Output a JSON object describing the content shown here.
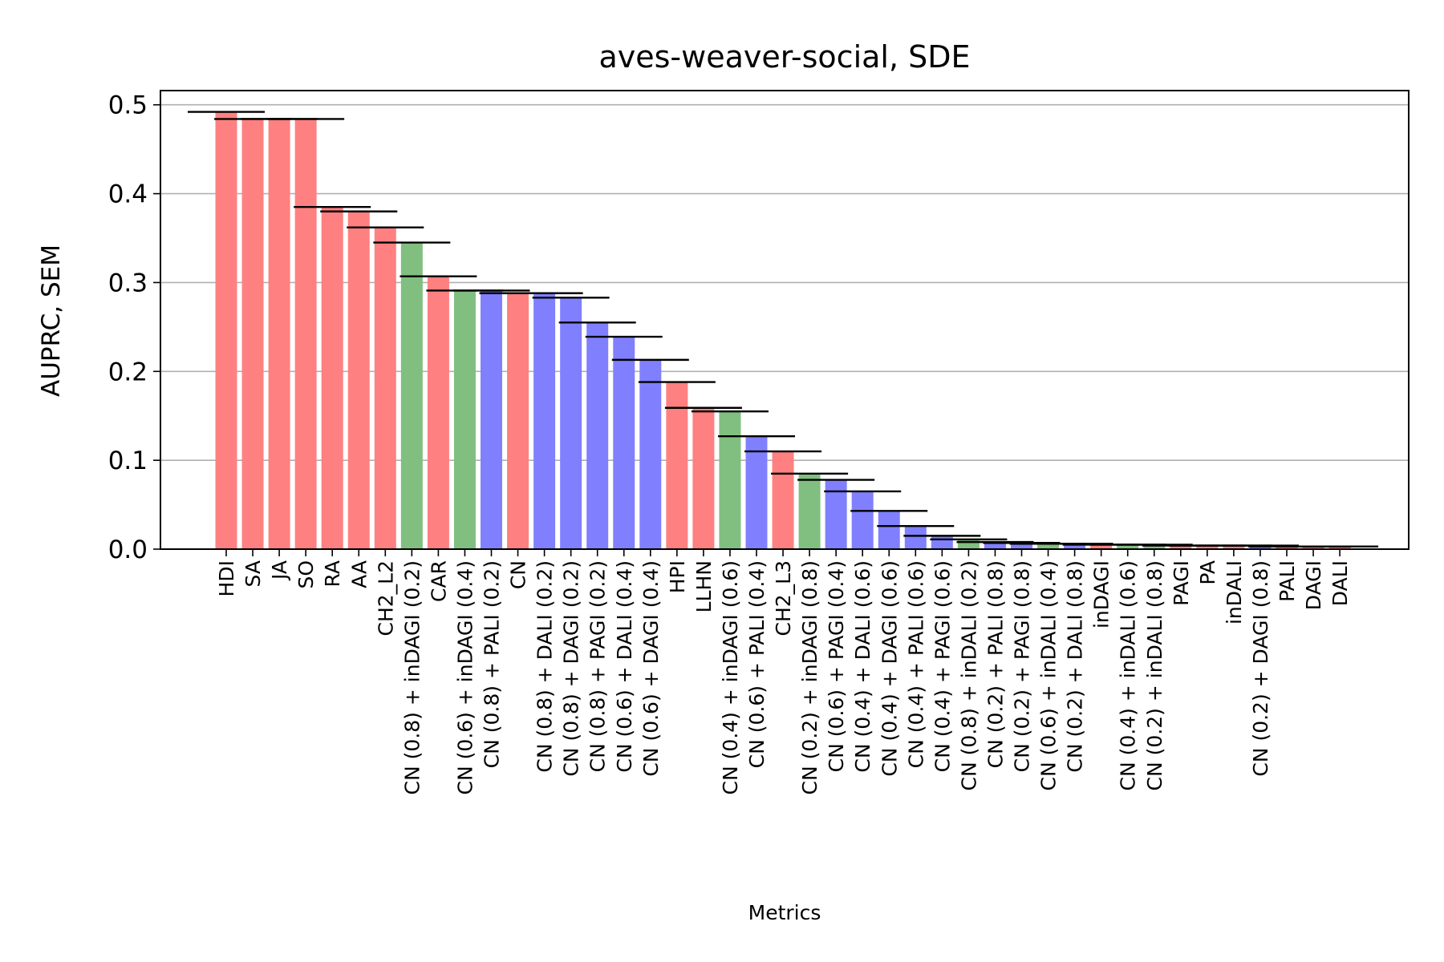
{
  "chart_data": {
    "type": "bar",
    "title": "aves-weaver-social, SDE",
    "xlabel": "Metrics",
    "ylabel": "AUPRC, SEM",
    "ylim": [
      0,
      0.516
    ],
    "yticks": [
      "0.0",
      "0.1",
      "0.2",
      "0.3",
      "0.4",
      "0.5"
    ],
    "grid": "horizontal",
    "colors": {
      "red": "#ff8080",
      "green": "#80bf80",
      "blue": "#8080ff",
      "error": "#000000",
      "grid": "#b0b0b0"
    },
    "categories": [
      "HDI",
      "SA",
      "JA",
      "SO",
      "RA",
      "AA",
      "CH2_L2",
      "CN (0.8) + inDAGI (0.2)",
      "CAR",
      "CN (0.6) + inDAGI (0.4)",
      "CN (0.8) + PALI (0.2)",
      "CN",
      "CN (0.8) + DALI (0.2)",
      "CN (0.8) + DAGI (0.2)",
      "CN (0.8) + PAGI (0.2)",
      "CN (0.6) + DALI (0.4)",
      "CN (0.6) + DAGI (0.4)",
      "HPI",
      "LLHN",
      "CN (0.4) + inDAGI (0.6)",
      "CN (0.6) + PALI (0.4)",
      "CH2_L3",
      "CN (0.2) + inDAGI (0.8)",
      "CN (0.6) + PAGI (0.4)",
      "CN (0.4) + DALI (0.6)",
      "CN (0.4) + DAGI (0.6)",
      "CN (0.4) + PALI (0.6)",
      "CN (0.4) + PAGI (0.6)",
      "CN (0.8) + inDALI (0.2)",
      "CN (0.2) + PALI (0.8)",
      "CN (0.2) + PAGI (0.8)",
      "CN (0.6) + inDALI (0.4)",
      "CN (0.2) + DALI (0.8)",
      "inDAGI",
      "CN (0.4) + inDALI (0.6)",
      "CN (0.2) + inDALI (0.8)",
      "PAGI",
      "PA",
      "inDALI",
      "CN (0.2) + DAGI (0.8)",
      "PALI",
      "DAGI",
      "DALI"
    ],
    "values": [
      0.492,
      0.484,
      0.484,
      0.484,
      0.385,
      0.38,
      0.362,
      0.345,
      0.307,
      0.291,
      0.291,
      0.288,
      0.288,
      0.283,
      0.255,
      0.239,
      0.213,
      0.188,
      0.159,
      0.155,
      0.127,
      0.11,
      0.085,
      0.078,
      0.065,
      0.043,
      0.026,
      0.015,
      0.011,
      0.008,
      0.007,
      0.006,
      0.006,
      0.005,
      0.005,
      0.005,
      0.004,
      0.004,
      0.004,
      0.004,
      0.003,
      0.003,
      0.003
    ],
    "bar_colors": [
      "red",
      "red",
      "red",
      "red",
      "red",
      "red",
      "red",
      "green",
      "red",
      "green",
      "blue",
      "red",
      "blue",
      "blue",
      "blue",
      "blue",
      "blue",
      "red",
      "red",
      "green",
      "blue",
      "red",
      "green",
      "blue",
      "blue",
      "blue",
      "blue",
      "blue",
      "green",
      "blue",
      "blue",
      "green",
      "blue",
      "red",
      "green",
      "green",
      "red",
      "red",
      "red",
      "blue",
      "red",
      "red",
      "red"
    ]
  }
}
